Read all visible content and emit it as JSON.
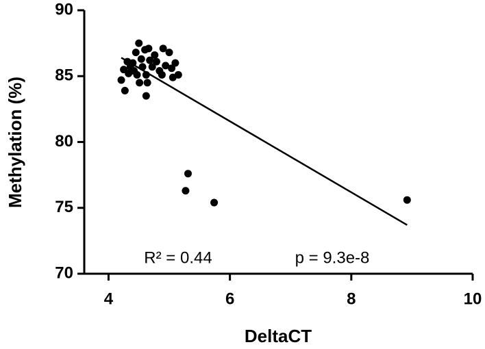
{
  "chart_data": {
    "type": "scatter",
    "x_label": "DeltaCT",
    "y_label": "Methylation (%)",
    "xlim": [
      3.6,
      10
    ],
    "ylim": [
      70,
      90
    ],
    "xticks": [
      4,
      6,
      8,
      10
    ],
    "yticks": [
      70,
      75,
      80,
      85,
      90
    ],
    "color": "#000000",
    "x": [
      4.21,
      4.27,
      4.62,
      5.27,
      5.31,
      5.74,
      8.92,
      4.5,
      4.45,
      4.6,
      4.66,
      4.9,
      5.0,
      4.31,
      4.36,
      4.42,
      4.47,
      4.51,
      4.68,
      4.72,
      4.79,
      4.84,
      4.88,
      4.94,
      5.1,
      5.15,
      5.06,
      4.33,
      4.56,
      4.62,
      4.76,
      4.54,
      4.4,
      4.25,
      4.64,
      5.04
    ],
    "y": [
      84.7,
      83.9,
      83.5,
      76.3,
      77.6,
      75.4,
      75.6,
      87.5,
      86.8,
      87.0,
      87.1,
      87.1,
      86.8,
      86.1,
      85.7,
      85.4,
      85.1,
      84.5,
      86.2,
      85.7,
      86.1,
      85.4,
      85.1,
      85.8,
      86.0,
      85.1,
      84.9,
      85.2,
      85.7,
      85.1,
      86.6,
      86.3,
      86.0,
      85.5,
      84.5,
      85.6
    ],
    "fit": {
      "x": [
        4.21,
        8.92
      ],
      "y": [
        86.4,
        73.7
      ]
    },
    "annotations": [
      "R² = 0.44",
      "p = 9.3e-8"
    ]
  }
}
